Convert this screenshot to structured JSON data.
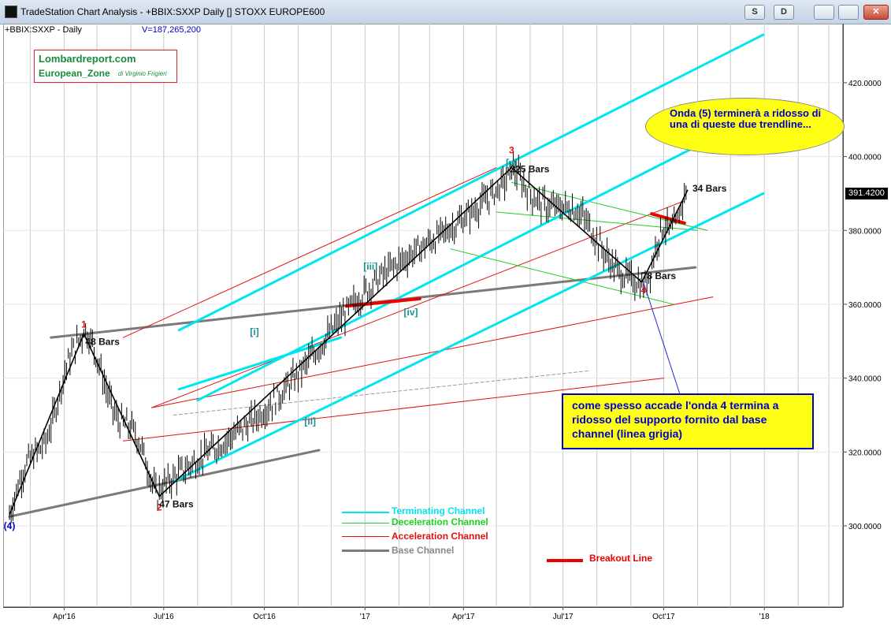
{
  "window": {
    "title": "TradeStation Chart Analysis - +BBIX:SXXP Daily [] STOXX EUROPE600",
    "buttons": {
      "s": "S",
      "d": "D"
    }
  },
  "header": {
    "symbol": "+BBIX:SXXP - Daily",
    "volume": "V=187,265,200"
  },
  "logo": {
    "line1": "Lombardreport.com",
    "line2": "European_Zone",
    "line3": "di Virginio Frigieri"
  },
  "colors": {
    "terminating": "#00e5ee",
    "deceleration": "#22cc22",
    "acceleration": "#dd1111",
    "base": "#7a7a7a",
    "breakout": "#ee0000",
    "wave": "#000000",
    "callout_fill": "#ffff14",
    "callout_text": "#0000cc"
  },
  "chart_data": {
    "type": "line",
    "title": "",
    "xlabel": "",
    "ylabel": "",
    "ylim": [
      278,
      436
    ],
    "y_ticks": [
      "420.0000",
      "400.0000",
      "380.0000",
      "360.0000",
      "340.0000",
      "320.0000",
      "300.0000"
    ],
    "x_ticks": [
      "Apr'16",
      "Jul'16",
      "Oct'16",
      "'17",
      "Apr'17",
      "Jul'17",
      "Oct'17",
      "'18"
    ],
    "last_price": "391.4200",
    "series": [
      {
        "x": [
          "2016-02-11",
          "2016-04-19",
          "2016-06-27",
          "2017-05-15",
          "2017-09-11",
          "2017-10-23"
        ],
        "values": [
          303,
          352,
          308,
          397,
          366,
          391
        ]
      }
    ],
    "wave_labels": [
      {
        "text": "(4)",
        "x": "2016-02-11",
        "y": 303,
        "color": "#0000cc"
      },
      {
        "text": "1",
        "x": "2016-04-19",
        "y": 352,
        "color": "#dd1111"
      },
      {
        "text": "2",
        "x": "2016-06-27",
        "y": 308,
        "color": "#dd1111"
      },
      {
        "text": "3",
        "x": "2017-05-15",
        "y": 397,
        "color": "#dd1111"
      },
      {
        "text": "4",
        "x": "2017-09-11",
        "y": 366,
        "color": "#dd1111"
      },
      {
        "text": "[i]",
        "x": "2016-09-22",
        "y": 350,
        "color": "#1a8f8f"
      },
      {
        "text": "[ii]",
        "x": "2016-11-09",
        "y": 330,
        "color": "#1a8f8f"
      },
      {
        "text": "[iii]",
        "x": "2017-01-06",
        "y": 366,
        "color": "#1a8f8f"
      },
      {
        "text": "[iv]",
        "x": "2017-02-09",
        "y": 360,
        "color": "#1a8f8f"
      },
      {
        "text": "[v]",
        "x": "2017-05-15",
        "y": 397,
        "color": "#1a8f8f"
      }
    ],
    "bar_count_labels": [
      {
        "text": "48 Bars",
        "x": "2016-04-19",
        "y": 352
      },
      {
        "text": "47 Bars",
        "x": "2016-06-27",
        "y": 308
      },
      {
        "text": "225 Bars",
        "x": "2017-05-15",
        "y": 397
      },
      {
        "text": "78 Bars",
        "x": "2017-09-11",
        "y": 366
      },
      {
        "text": "34 Bars",
        "x": "2017-10-23",
        "y": 391
      }
    ],
    "legend": {
      "placement": "bottom-center",
      "items": [
        {
          "name": "Terminating Channel",
          "color": "#00e5ee"
        },
        {
          "name": "Deceleration Channel",
          "color": "#22cc22"
        },
        {
          "name": "Acceleration Channel",
          "color": "#dd1111"
        },
        {
          "name": "Base Channel",
          "color": "#7a7a7a"
        },
        {
          "name": "Breakout Line",
          "color": "#ee0000"
        }
      ]
    },
    "annotations": {
      "ellipse": "Onda (5) terminerà a ridosso di una di queste due trendline...",
      "note": "come spesso accade l'onda 4 termina a ridosso del supporto fornito dal base channel  (linea grigia)"
    }
  }
}
